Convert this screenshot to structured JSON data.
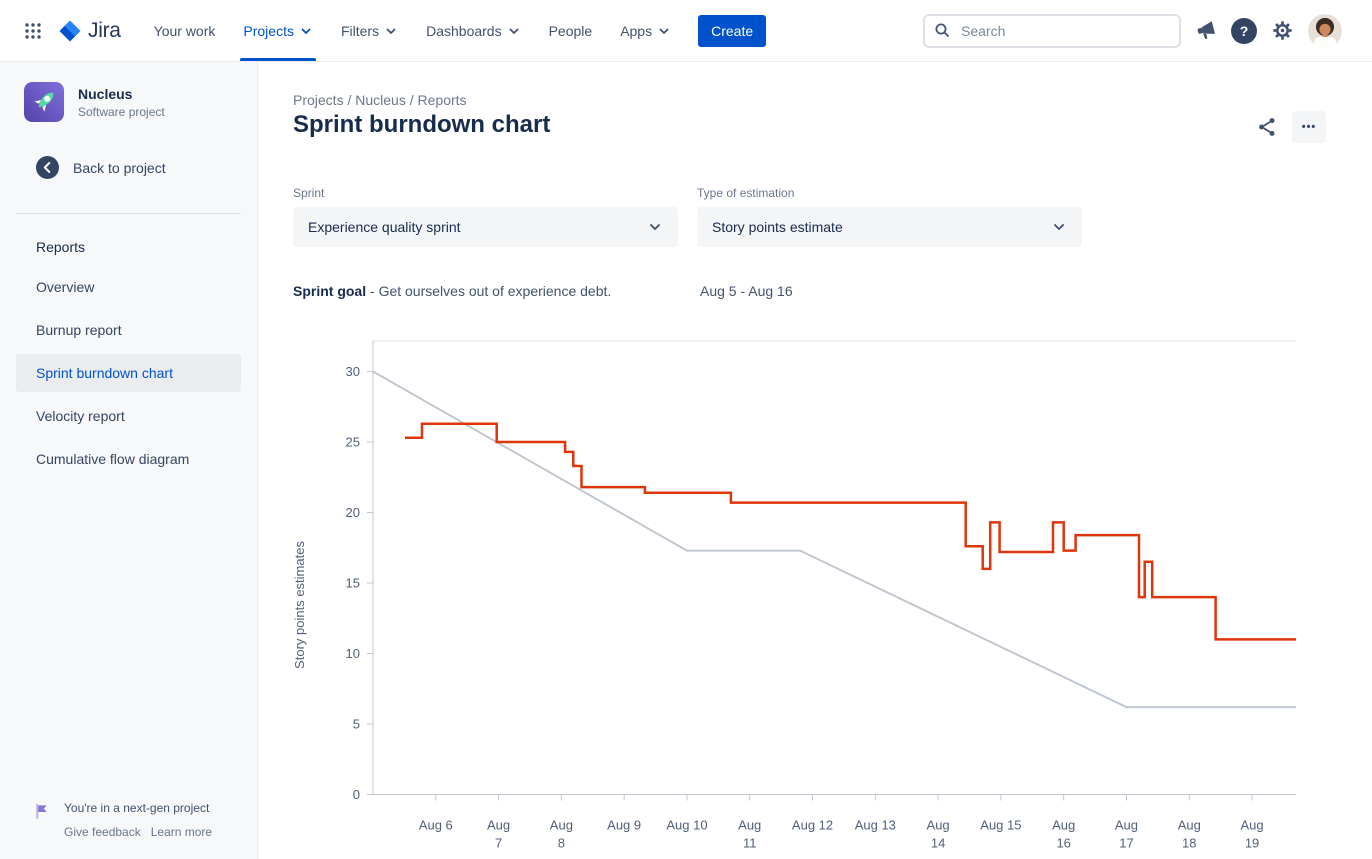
{
  "navbar": {
    "logo_text": "Jira",
    "items": [
      {
        "label": "Your work",
        "chevron": false,
        "active": false
      },
      {
        "label": "Projects",
        "chevron": true,
        "active": true
      },
      {
        "label": "Filters",
        "chevron": true,
        "active": false
      },
      {
        "label": "Dashboards",
        "chevron": true,
        "active": false
      },
      {
        "label": "People",
        "chevron": false,
        "active": false
      },
      {
        "label": "Apps",
        "chevron": true,
        "active": false
      }
    ],
    "create_label": "Create",
    "search_placeholder": "Search",
    "help_glyph": "?"
  },
  "icons": {
    "app_switcher": "grid-dots",
    "search": "magnifier",
    "notifications": "megaphone",
    "help": "question-circle",
    "settings": "gear",
    "share": "share-nodes",
    "back": "circle-arrow-left",
    "project": "rocket",
    "next_gen": "purple-flag",
    "dropdown": "chevron-down"
  },
  "sidebar": {
    "project_name": "Nucleus",
    "project_type": "Software project",
    "back_label": "Back to project",
    "section_title": "Reports",
    "items": [
      {
        "label": "Overview",
        "active": false
      },
      {
        "label": "Burnup report",
        "active": false
      },
      {
        "label": "Sprint burndown chart",
        "active": true
      },
      {
        "label": "Velocity report",
        "active": false
      },
      {
        "label": "Cumulative flow diagram",
        "active": false
      }
    ],
    "footer": {
      "message": "You're in a next-gen project",
      "links": [
        "Give feedback",
        "Learn more"
      ]
    }
  },
  "main": {
    "breadcrumb": [
      "Projects",
      "Nucleus",
      "Reports"
    ],
    "title": "Sprint burndown chart",
    "more_label": "•••",
    "filters": [
      {
        "label": "Sprint",
        "value": "Experience quality sprint"
      },
      {
        "label": "Type of estimation",
        "value": "Story points estimate"
      }
    ],
    "sprint_goal_label": "Sprint goal",
    "sprint_goal_text": "- Get ourselves out of experience debt.",
    "date_range": "Aug 5 - Aug 16"
  },
  "chart_data": {
    "type": "line",
    "ylabel": "Story points estimates",
    "ylim": [
      0,
      30
    ],
    "yticks": [
      0,
      5,
      10,
      15,
      20,
      25,
      30
    ],
    "x_domain": [
      0,
      14.7
    ],
    "x_unit": "days after Aug 5",
    "xticks": [
      {
        "day": 1,
        "line1": "Aug 6",
        "line2": ""
      },
      {
        "day": 2,
        "line1": "Aug",
        "line2": "7"
      },
      {
        "day": 3,
        "line1": "Aug",
        "line2": "8"
      },
      {
        "day": 4,
        "line1": "Aug 9",
        "line2": ""
      },
      {
        "day": 5,
        "line1": "Aug 10",
        "line2": ""
      },
      {
        "day": 6,
        "line1": "Aug",
        "line2": "11"
      },
      {
        "day": 7,
        "line1": "Aug 12",
        "line2": ""
      },
      {
        "day": 8,
        "line1": "Aug 13",
        "line2": ""
      },
      {
        "day": 9,
        "line1": "Aug",
        "line2": "14"
      },
      {
        "day": 10,
        "line1": "Aug 15",
        "line2": ""
      },
      {
        "day": 11,
        "line1": "Aug",
        "line2": "16"
      },
      {
        "day": 12,
        "line1": "Aug",
        "line2": "17"
      },
      {
        "day": 13,
        "line1": "Aug",
        "line2": "18"
      },
      {
        "day": 14,
        "line1": "Aug",
        "line2": "19"
      }
    ],
    "series": [
      {
        "name": "guideline",
        "color": "#C1C7D0",
        "width": 2,
        "points": [
          [
            0,
            30
          ],
          [
            5,
            17.3
          ],
          [
            6.8,
            17.3
          ],
          [
            12,
            6.2
          ],
          [
            14.7,
            6.2
          ]
        ]
      },
      {
        "name": "remaining-work",
        "color": "#DE350B",
        "width": 2.5,
        "points": [
          [
            0.51,
            25.3
          ],
          [
            0.78,
            25.3
          ],
          [
            0.78,
            26.3
          ],
          [
            1.97,
            26.3
          ],
          [
            1.97,
            25
          ],
          [
            3.06,
            25
          ],
          [
            3.06,
            24.3
          ],
          [
            3.19,
            24.3
          ],
          [
            3.19,
            23.3
          ],
          [
            3.32,
            23.3
          ],
          [
            3.32,
            21.8
          ],
          [
            4.33,
            21.8
          ],
          [
            4.33,
            21.4
          ],
          [
            5.7,
            21.4
          ],
          [
            5.7,
            20.7
          ],
          [
            9.44,
            20.7
          ],
          [
            9.44,
            17.6
          ],
          [
            9.71,
            17.6
          ],
          [
            9.71,
            16
          ],
          [
            9.83,
            16
          ],
          [
            9.83,
            19.3
          ],
          [
            9.98,
            19.3
          ],
          [
            9.98,
            17.2
          ],
          [
            10.83,
            17.2
          ],
          [
            10.83,
            19.3
          ],
          [
            11.0,
            19.3
          ],
          [
            11.0,
            17.3
          ],
          [
            11.19,
            17.3
          ],
          [
            11.19,
            18.4
          ],
          [
            12.2,
            18.4
          ],
          [
            12.2,
            14
          ],
          [
            12.29,
            14
          ],
          [
            12.29,
            16.5
          ],
          [
            12.41,
            16.5
          ],
          [
            12.41,
            14
          ],
          [
            13.42,
            14
          ],
          [
            13.42,
            11
          ],
          [
            14.7,
            11
          ]
        ]
      }
    ]
  }
}
